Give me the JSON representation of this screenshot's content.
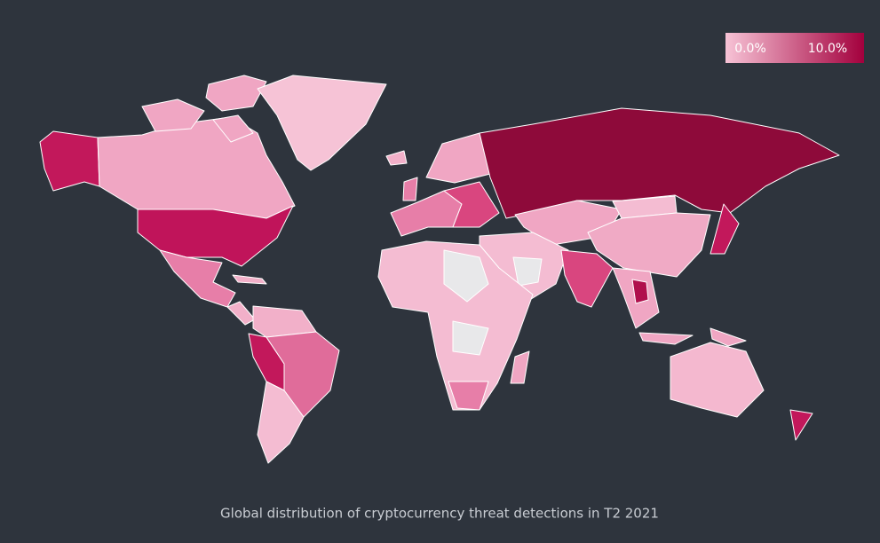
{
  "legend": {
    "min": {
      "value": 0,
      "label": "0.0%"
    },
    "max": {
      "value": 10,
      "label": "10.0%"
    }
  },
  "caption": "Global distribution of cryptocurrency threat detections in T2 2021"
}
